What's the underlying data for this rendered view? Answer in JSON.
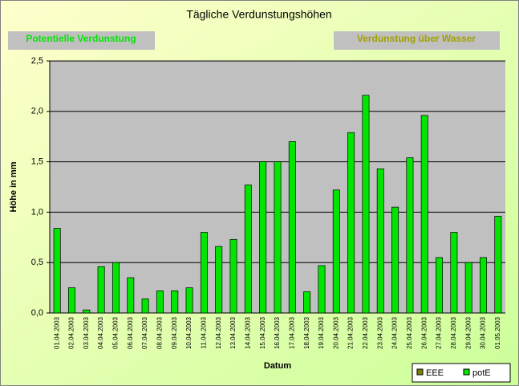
{
  "buttons": [
    "Potentielle Verdunstung",
    "Verdunstung über Wasser"
  ],
  "chart_data": {
    "type": "bar",
    "title": "Tägliche Verdunstungshöhen",
    "x_label": "Datum",
    "y_label": "Höhe in mm",
    "categories": [
      "01.04.2003",
      "02.04.2003",
      "03.04.2003",
      "04.04.2003",
      "05.04.2003",
      "06.04.2003",
      "07.04.2003",
      "08.04.2003",
      "09.04.2003",
      "10.04.2003",
      "11.04.2003",
      "12.04.2003",
      "13.04.2003",
      "14.04.2003",
      "15.04.2003",
      "16.04.2003",
      "17.04.2003",
      "18.04.2003",
      "19.04.2003",
      "20.04.2003",
      "21.04.2003",
      "22.04.2003",
      "23.04.2003",
      "24.04.2003",
      "25.04.2003",
      "26.04.2003",
      "27.04.2003",
      "28.04.2003",
      "29.04.2003",
      "30.04.2003",
      "01.05.2003"
    ],
    "series": [
      {
        "name": "EEE",
        "color": "#808000",
        "values": [
          null,
          null,
          null,
          null,
          null,
          null,
          null,
          null,
          null,
          null,
          null,
          null,
          null,
          null,
          null,
          null,
          null,
          null,
          null,
          null,
          null,
          null,
          null,
          null,
          null,
          null,
          null,
          null,
          null,
          null,
          null
        ]
      },
      {
        "name": "potE",
        "color": "#00e600",
        "values": [
          0.84,
          0.25,
          0.03,
          0.46,
          0.5,
          0.35,
          0.14,
          0.22,
          0.22,
          0.25,
          0.8,
          0.66,
          0.73,
          1.27,
          1.5,
          1.5,
          1.7,
          0.21,
          0.47,
          1.22,
          1.79,
          2.16,
          1.43,
          1.05,
          1.54,
          1.96,
          0.55,
          0.8,
          0.5,
          0.55,
          0.96
        ]
      }
    ],
    "ylim": [
      0,
      2.5
    ],
    "yticks": [
      {
        "value": 0,
        "label": "0,0"
      },
      {
        "value": 0.5,
        "label": "0,5"
      },
      {
        "value": 1,
        "label": "1,0"
      },
      {
        "value": 1.5,
        "label": "1,5"
      },
      {
        "value": 2,
        "label": "2,0"
      },
      {
        "value": 2.5,
        "label": "2,5"
      }
    ],
    "grid": true,
    "legend": "bottom-right"
  }
}
